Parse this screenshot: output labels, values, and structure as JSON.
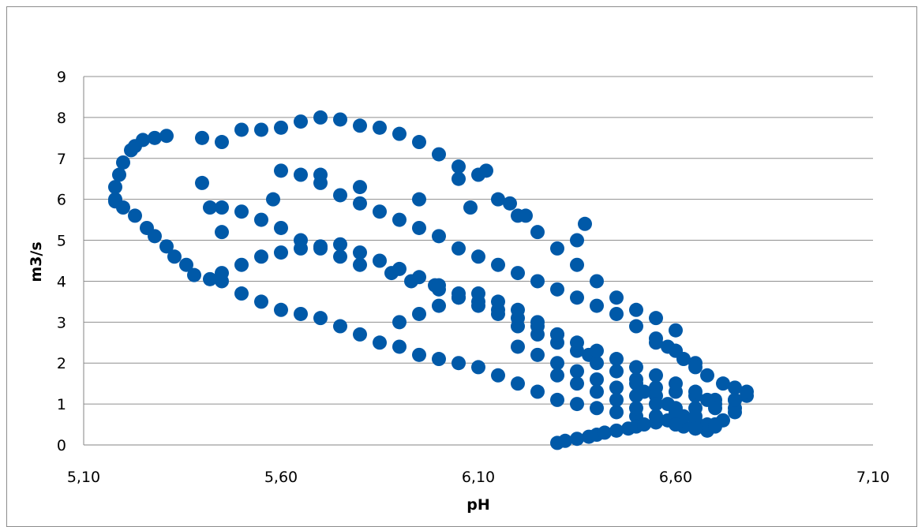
{
  "chart_data": {
    "type": "scatter",
    "title": "",
    "xlabel": "pH",
    "ylabel": "m3/s",
    "xlim": [
      5.1,
      7.1
    ],
    "ylim": [
      0,
      9
    ],
    "xticks": [
      5.1,
      5.6,
      6.1,
      6.6,
      7.1
    ],
    "xtick_labels": [
      "5,10",
      "5,60",
      "6,10",
      "6,60",
      "7,10"
    ],
    "yticks": [
      0,
      1,
      2,
      3,
      4,
      5,
      6,
      7,
      8,
      9
    ],
    "ytick_labels": [
      "0",
      "1",
      "2",
      "3",
      "4",
      "5",
      "6",
      "7",
      "8",
      "9"
    ],
    "grid": "horizontal",
    "legend": "none",
    "marker_color": "#0059a8",
    "series": [
      {
        "x": [
          5.18,
          5.18,
          5.19,
          5.2,
          5.22,
          5.23,
          5.25,
          5.28,
          5.31,
          5.4,
          5.45,
          5.18,
          5.2,
          5.23,
          5.26,
          5.28,
          5.31,
          5.33,
          5.36,
          5.38,
          5.42,
          5.45,
          5.5,
          5.55,
          5.6,
          5.65,
          5.7,
          5.75,
          5.8,
          5.85,
          5.9,
          5.95,
          6.0,
          6.05,
          6.1,
          6.15,
          6.2,
          6.25,
          6.3,
          6.35,
          6.4,
          6.45,
          6.5,
          6.55,
          6.6,
          6.65,
          6.7,
          6.75,
          6.78,
          5.45,
          5.5,
          5.55,
          5.6,
          5.65,
          5.7,
          5.75,
          5.8,
          5.88,
          5.93,
          5.99,
          6.0,
          6.05,
          6.1,
          6.15,
          6.2,
          6.25,
          6.3,
          6.35,
          6.38,
          6.4,
          6.45,
          6.5,
          6.55,
          6.6,
          6.65,
          6.68,
          5.5,
          5.55,
          5.6,
          5.65,
          5.7,
          5.75,
          5.8,
          5.85,
          5.9,
          5.95,
          6.0,
          6.05,
          6.1,
          6.15,
          6.2,
          6.25,
          6.3,
          6.35,
          6.4,
          6.45,
          6.5,
          6.55,
          6.6,
          5.6,
          5.65,
          5.7,
          5.75,
          5.8,
          5.85,
          5.9,
          5.95,
          6.0,
          6.05,
          6.1,
          6.15,
          6.2,
          6.25,
          6.3,
          6.35,
          6.4,
          6.45,
          6.5,
          6.55,
          6.6,
          6.65,
          5.45,
          5.5,
          5.55,
          5.6,
          5.65,
          5.7,
          5.75,
          5.8,
          5.85,
          5.9,
          5.95,
          6.0,
          6.05,
          6.1,
          6.15,
          6.2,
          6.25,
          6.3,
          6.35,
          6.4,
          6.45,
          6.5,
          6.55,
          6.6,
          6.65,
          6.7,
          6.75,
          6.3,
          6.32,
          6.35,
          6.38,
          6.4,
          6.42,
          6.45,
          6.48,
          6.5,
          6.52,
          6.55,
          6.58,
          6.6,
          6.62,
          6.65,
          6.68,
          6.7,
          6.72,
          6.75,
          6.5,
          6.52,
          6.55,
          6.58,
          6.6,
          6.62,
          6.65,
          6.68,
          6.7,
          6.55,
          6.58,
          6.6,
          6.62,
          6.65,
          6.68,
          6.72,
          6.75,
          6.78,
          5.4,
          5.42,
          5.45,
          5.58,
          5.7,
          5.8,
          5.95,
          6.05,
          6.08,
          6.12,
          6.18,
          6.22,
          6.35,
          6.37,
          5.9,
          5.95,
          6.0,
          6.05,
          6.1,
          6.15,
          6.2,
          6.25,
          6.3,
          6.2,
          6.25,
          6.3,
          6.35,
          6.4,
          6.45,
          6.5,
          6.55,
          6.6,
          6.65,
          6.7,
          6.75,
          6.3,
          6.35,
          6.4,
          6.45,
          6.5,
          6.55,
          6.6,
          6.65,
          6.7
        ],
        "y": [
          6.0,
          6.3,
          6.6,
          6.9,
          7.2,
          7.3,
          7.45,
          7.5,
          7.55,
          7.5,
          7.4,
          5.95,
          5.8,
          5.6,
          5.3,
          5.1,
          4.85,
          4.6,
          4.4,
          4.15,
          4.05,
          4.0,
          3.7,
          3.5,
          3.3,
          3.2,
          3.1,
          2.9,
          2.7,
          2.5,
          2.4,
          2.2,
          2.1,
          2.0,
          1.9,
          1.7,
          1.5,
          1.3,
          1.1,
          1.0,
          0.9,
          0.8,
          0.7,
          0.7,
          0.8,
          0.9,
          1.0,
          1.1,
          1.2,
          5.8,
          5.7,
          5.5,
          5.3,
          5.0,
          4.8,
          4.6,
          4.4,
          4.2,
          4.0,
          3.9,
          3.8,
          3.6,
          3.4,
          3.2,
          2.9,
          2.7,
          2.5,
          2.3,
          2.2,
          2.0,
          1.8,
          1.6,
          1.4,
          1.3,
          1.2,
          1.1,
          7.7,
          7.7,
          7.75,
          7.9,
          8.0,
          7.95,
          7.8,
          7.75,
          7.6,
          7.4,
          7.1,
          6.8,
          6.6,
          6.0,
          5.6,
          5.2,
          4.8,
          4.4,
          4.0,
          3.6,
          3.3,
          3.1,
          2.8,
          6.7,
          6.6,
          6.4,
          6.1,
          5.9,
          5.7,
          5.5,
          5.3,
          5.1,
          4.8,
          4.6,
          4.4,
          4.2,
          4.0,
          3.8,
          3.6,
          3.4,
          3.2,
          2.9,
          2.6,
          2.3,
          2.0,
          4.2,
          4.4,
          4.6,
          4.7,
          4.8,
          4.85,
          4.9,
          4.7,
          4.5,
          4.3,
          4.1,
          3.9,
          3.7,
          3.5,
          3.3,
          3.1,
          2.9,
          2.7,
          2.5,
          2.3,
          2.1,
          1.9,
          1.7,
          1.5,
          1.3,
          1.1,
          0.9,
          0.05,
          0.1,
          0.15,
          0.2,
          0.25,
          0.3,
          0.35,
          0.4,
          0.45,
          0.5,
          0.55,
          0.6,
          0.5,
          0.45,
          0.4,
          0.35,
          0.5,
          0.6,
          0.8,
          1.5,
          1.3,
          1.2,
          1.0,
          0.9,
          0.7,
          0.6,
          0.5,
          0.45,
          2.5,
          2.4,
          2.3,
          2.1,
          1.9,
          1.7,
          1.5,
          1.4,
          1.3,
          6.4,
          5.8,
          5.2,
          6.0,
          6.6,
          6.3,
          6.0,
          6.5,
          5.8,
          6.7,
          5.9,
          5.6,
          5.0,
          5.4,
          3.0,
          3.2,
          3.4,
          3.6,
          3.7,
          3.5,
          3.3,
          3.0,
          2.7,
          2.4,
          2.2,
          2.0,
          1.8,
          1.6,
          1.4,
          1.2,
          1.0,
          0.8,
          0.7,
          0.9,
          1.1,
          1.7,
          1.5,
          1.3,
          1.1,
          0.9,
          0.7,
          0.5,
          0.4,
          0.5
        ]
      }
    ]
  }
}
